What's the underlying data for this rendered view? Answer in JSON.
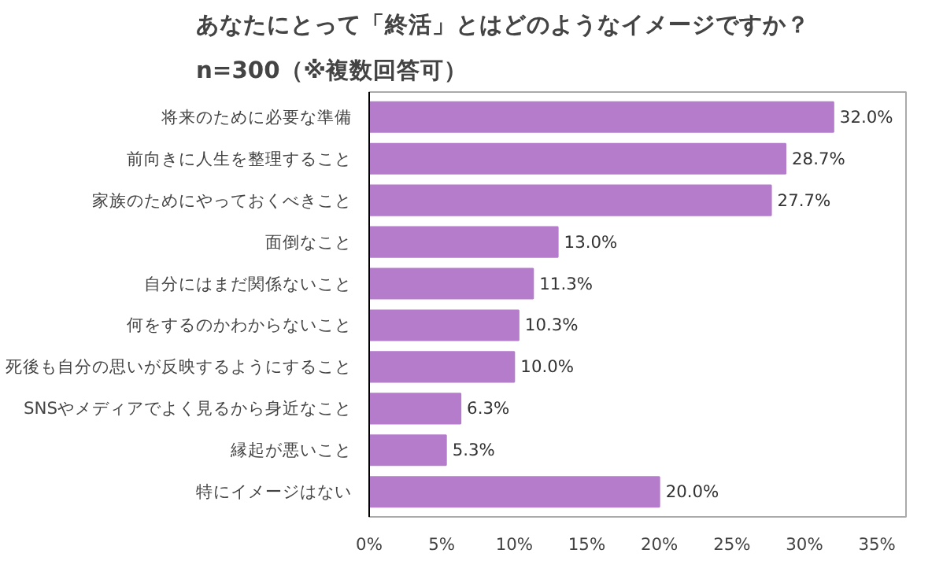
{
  "chart_data": {
    "type": "bar",
    "orientation": "horizontal",
    "title": "あなたにとって「終活」とはどのようなイメージですか？",
    "subtitle": "n=300（※複数回答可）",
    "categories": [
      "将来のために必要な準備",
      "前向きに人生を整理すること",
      "家族のためにやっておくべきこと",
      "面倒なこと",
      "自分にはまだ関係ないこと",
      "何をするのかわからないこと",
      "死後も自分の思いが反映するようにすること",
      "SNSやメディアでよく見るから身近なこと",
      "縁起が悪いこと",
      "特にイメージはない"
    ],
    "values": [
      32.0,
      28.7,
      27.7,
      13.0,
      11.3,
      10.3,
      10.0,
      6.3,
      5.3,
      20.0
    ],
    "value_labels": [
      "32.0%",
      "28.7%",
      "27.7%",
      "13.0%",
      "11.3%",
      "10.3%",
      "10.0%",
      "6.3%",
      "5.3%",
      "20.0%"
    ],
    "color": "#b57ccc",
    "xlim": [
      0,
      37
    ],
    "xticks": [
      {
        "value": 0,
        "label": "0%"
      },
      {
        "value": 5,
        "label": "5%"
      },
      {
        "value": 10,
        "label": "10%"
      },
      {
        "value": 15,
        "label": "15%"
      },
      {
        "value": 20,
        "label": "20%"
      },
      {
        "value": 25,
        "label": "25%"
      },
      {
        "value": 30,
        "label": "30%"
      },
      {
        "value": 35,
        "label": "35%"
      }
    ],
    "grid": false
  }
}
